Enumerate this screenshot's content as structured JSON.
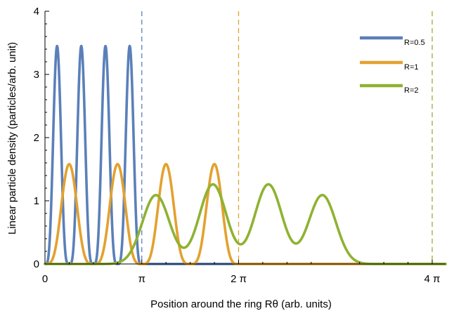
{
  "chart_data": {
    "type": "line",
    "title": "",
    "xlabel": "Position around the ring Rθ (arb. units)",
    "ylabel": "Linear particle density (particles/arb. unit)",
    "xlim": [
      0,
      13.0
    ],
    "ylim": [
      0,
      4
    ],
    "x_ticks": [
      {
        "value": 0,
        "label": "0"
      },
      {
        "value": 3.14159,
        "label": "π"
      },
      {
        "value": 6.28319,
        "label": "2 π"
      },
      {
        "value": 12.56637,
        "label": "4 π"
      }
    ],
    "y_ticks": [
      {
        "value": 0,
        "label": "0"
      },
      {
        "value": 1,
        "label": "1"
      },
      {
        "value": 2,
        "label": "2"
      },
      {
        "value": 3,
        "label": "3"
      },
      {
        "value": 4,
        "label": "4"
      }
    ],
    "grid": false,
    "legend_position": "top-right",
    "series": [
      {
        "name": "R=0.5",
        "color": "#5b80b9",
        "period": 3.14159,
        "peaks": [
          0.393,
          1.178,
          1.963,
          2.749
        ],
        "peak_height": 3.45,
        "shape": "sin_power"
      },
      {
        "name": "R=1",
        "color": "#e3a12f",
        "period": 6.28319,
        "peaks": [
          0.785,
          2.356,
          3.927,
          5.498
        ],
        "peak_height": 1.58,
        "shape": "sin_power"
      },
      {
        "name": "R=2",
        "color": "#8fb232",
        "period": 12.56637,
        "peaks": [
          3.6,
          5.45,
          7.25,
          9.0
        ],
        "peak_heights": [
          1.09,
          1.26,
          1.26,
          1.09
        ],
        "sigma": 0.44,
        "shape": "gaussian"
      }
    ],
    "vertical_markers": [
      {
        "x": 3.14159,
        "color": "#5b80b9"
      },
      {
        "x": 6.28319,
        "color": "#e3a12f"
      },
      {
        "x": 12.56637,
        "color": "#8fb232"
      }
    ]
  }
}
